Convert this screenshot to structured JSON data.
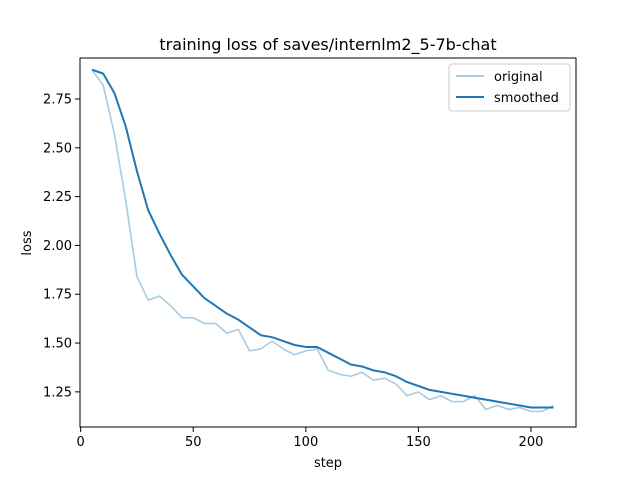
{
  "chart_data": {
    "type": "line",
    "title": "training loss of saves/internlm2_5-7b-chat",
    "xlabel": "step",
    "ylabel": "loss",
    "xlim": [
      -0.3,
      220
    ],
    "ylim": [
      1.07,
      2.96
    ],
    "xticks": [
      0,
      50,
      100,
      150,
      200
    ],
    "yticks": [
      1.25,
      1.5,
      1.75,
      2.0,
      2.25,
      2.5,
      2.75
    ],
    "legend": "top-right",
    "grid": false,
    "x": [
      5,
      10,
      15,
      20,
      25,
      30,
      35,
      40,
      45,
      50,
      55,
      60,
      65,
      70,
      75,
      80,
      85,
      90,
      95,
      100,
      105,
      110,
      115,
      120,
      125,
      130,
      135,
      140,
      145,
      150,
      155,
      160,
      165,
      170,
      175,
      180,
      185,
      190,
      195,
      200,
      205,
      210
    ],
    "series": [
      {
        "name": "original",
        "color": "#a6cbe3",
        "values": [
          2.9,
          2.82,
          2.57,
          2.23,
          1.84,
          1.72,
          1.74,
          1.69,
          1.63,
          1.63,
          1.6,
          1.6,
          1.55,
          1.57,
          1.46,
          1.47,
          1.51,
          1.47,
          1.44,
          1.46,
          1.47,
          1.36,
          1.34,
          1.33,
          1.35,
          1.31,
          1.32,
          1.29,
          1.23,
          1.25,
          1.21,
          1.23,
          1.2,
          1.2,
          1.23,
          1.16,
          1.18,
          1.16,
          1.17,
          1.15,
          1.15,
          1.18
        ]
      },
      {
        "name": "smoothed",
        "color": "#1f77b4",
        "values": [
          2.9,
          2.88,
          2.78,
          2.61,
          2.38,
          2.18,
          2.06,
          1.95,
          1.85,
          1.79,
          1.73,
          1.69,
          1.65,
          1.62,
          1.58,
          1.54,
          1.53,
          1.51,
          1.49,
          1.48,
          1.48,
          1.45,
          1.42,
          1.39,
          1.38,
          1.36,
          1.35,
          1.33,
          1.3,
          1.28,
          1.26,
          1.25,
          1.24,
          1.23,
          1.22,
          1.21,
          1.2,
          1.19,
          1.18,
          1.17,
          1.17,
          1.17
        ]
      }
    ]
  }
}
